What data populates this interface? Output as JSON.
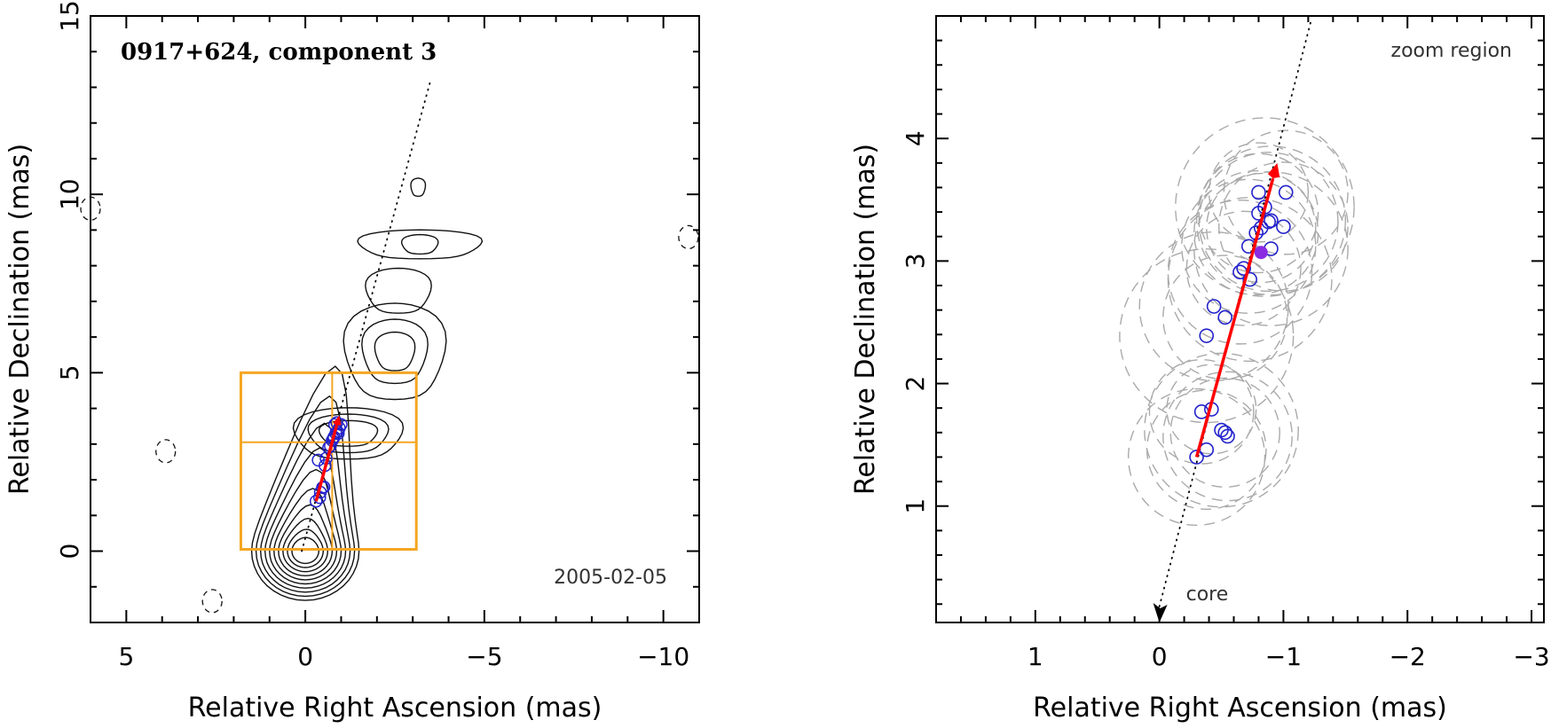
{
  "chart_data": [
    {
      "type": "scatter",
      "title": "0917+624, component 3",
      "epoch_label": "2005-02-05",
      "xlabel": "Relative Right Ascension (mas)",
      "ylabel": "Relative Declination (mas)",
      "xlim": [
        6,
        -11
      ],
      "ylim": [
        -2,
        15
      ],
      "xticks": [
        5,
        0,
        -5,
        -10
      ],
      "yticks": [
        0,
        5,
        10,
        15
      ],
      "xtick_labels": [
        "5",
        "0",
        "−5",
        "−10"
      ],
      "ytick_labels": [
        "0",
        "5",
        "10",
        "15"
      ],
      "contour_levels": 10,
      "zoom_box": {
        "x": [
          1.8,
          -3.1
        ],
        "y": [
          0.05,
          5.0
        ],
        "cross_x": -0.75,
        "cross_y": 3.05
      },
      "line_color": "#f5a623",
      "vector": {
        "from": [
          -0.3,
          1.4
        ],
        "to": [
          -0.95,
          3.8
        ],
        "color": "#ff0000"
      },
      "core_direction_line": {
        "from": [
          0.1,
          0.0
        ],
        "to": [
          -3.5,
          13.2
        ]
      },
      "points": {
        "color": "#2222cc",
        "x": [
          -0.3,
          -0.4,
          -0.42,
          -0.48,
          -0.52,
          -0.55,
          -0.36,
          -0.58,
          -0.65,
          -0.7,
          -0.75,
          -0.8,
          -0.85,
          -0.9,
          -0.95,
          -0.78,
          -0.82,
          -0.88,
          -0.92,
          -1.0
        ],
        "y": [
          1.4,
          1.5,
          1.65,
          1.78,
          1.8,
          2.4,
          2.55,
          2.6,
          2.9,
          2.95,
          3.1,
          3.2,
          3.3,
          3.35,
          3.45,
          3.15,
          3.55,
          3.6,
          3.3,
          3.55
        ]
      }
    },
    {
      "type": "scatter",
      "title": "",
      "zoom_label": "zoom region",
      "core_label": "core",
      "xlabel": "Relative Right Ascension (mas)",
      "ylabel": "Relative Declination (mas)",
      "xlim": [
        1.8,
        -3.1
      ],
      "ylim": [
        0.05,
        5.0
      ],
      "xticks": [
        1,
        0,
        -1,
        -2,
        -3
      ],
      "yticks": [
        1,
        2,
        3,
        4
      ],
      "xtick_labels": [
        "1",
        "0",
        "−1",
        "−2",
        "−3"
      ],
      "ytick_labels": [
        "1",
        "2",
        "3",
        "4"
      ],
      "vector": {
        "from": [
          -0.3,
          1.4
        ],
        "to": [
          -0.95,
          3.8
        ],
        "color": "#ff0000"
      },
      "core_direction_line": {
        "from": [
          0.0,
          0.05
        ],
        "to": [
          -1.22,
          4.95
        ]
      },
      "mean_position": {
        "x": -0.82,
        "y": 3.07,
        "color": "#8a2be2"
      },
      "points": {
        "color": "#2222cc",
        "x": [
          -0.3,
          -0.38,
          -0.34,
          -0.42,
          -0.5,
          -0.55,
          -0.53,
          -0.38,
          -0.44,
          -0.53,
          -0.65,
          -0.68,
          -0.73,
          -0.72,
          -0.78,
          -0.82,
          -0.9,
          -0.88,
          -0.8,
          -0.85,
          -0.9,
          -1.0,
          -1.02,
          -0.8
        ],
        "y": [
          1.4,
          1.46,
          1.77,
          1.79,
          1.62,
          1.57,
          1.6,
          2.39,
          2.63,
          2.54,
          2.91,
          2.94,
          2.85,
          3.12,
          3.23,
          3.27,
          3.1,
          3.32,
          3.39,
          3.44,
          3.33,
          3.28,
          3.56,
          3.56
        ]
      },
      "error_circles": {
        "color": "#aaaaaa",
        "r": [
          0.55,
          0.48,
          0.42,
          0.36,
          0.62,
          0.52,
          0.44,
          0.7,
          0.6,
          0.5,
          0.58,
          0.46,
          0.66,
          0.54,
          0.5,
          0.44,
          0.62,
          0.56,
          0.48,
          0.72,
          0.6,
          0.52,
          0.5,
          0.4
        ]
      }
    }
  ]
}
